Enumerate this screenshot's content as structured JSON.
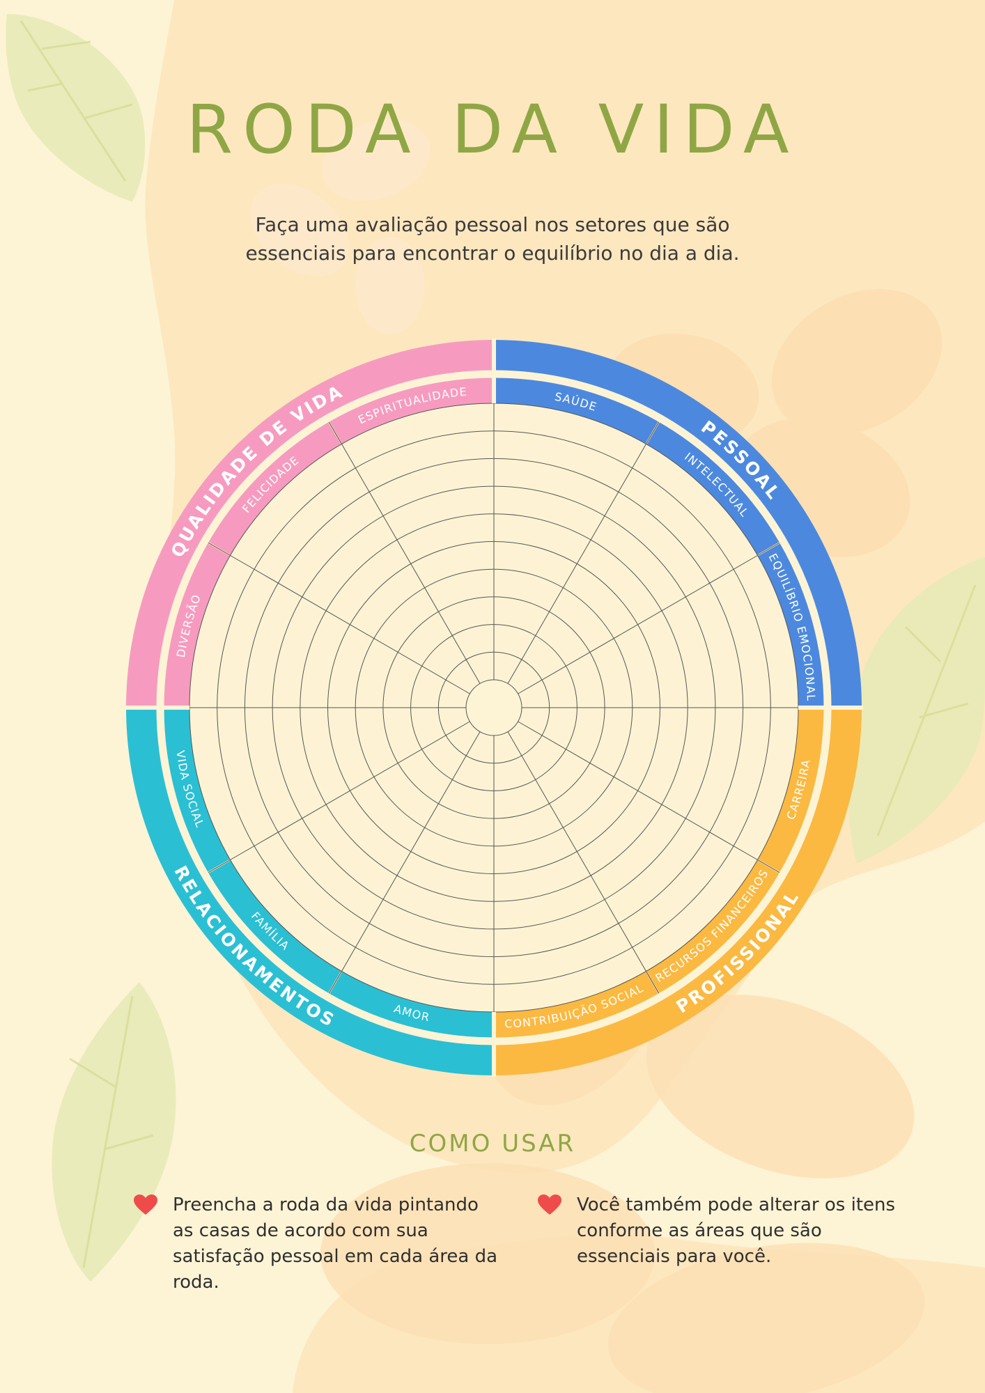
{
  "title": "RODA DA VIDA",
  "subtitle_line1": "Faça uma avaliação pessoal nos setores que são",
  "subtitle_line2": "essenciais para encontrar o equilíbrio no dia a dia.",
  "wheel": {
    "rings": 10,
    "categories": [
      {
        "label": "PESSOAL",
        "color": "#4c89de",
        "items": [
          "SAÚDE",
          "INTELECTUAL",
          "EQUILÍBRIO EMOCIONAL"
        ]
      },
      {
        "label": "PROFISSIONAL",
        "color": "#fbb941",
        "items": [
          "CARREIRA",
          "RECURSOS FINANCEIROS",
          "CONTRIBUIÇÃO SOCIAL"
        ]
      },
      {
        "label": "RELACIONAMENTOS",
        "color": "#2bbfd3",
        "items": [
          "AMOR",
          "FAMÍLIA",
          "VIDA SOCIAL"
        ]
      },
      {
        "label": "QUALIDADE DE VIDA",
        "color": "#f69bbf",
        "items": [
          "DIVERSÃO",
          "FELICIDADE",
          "ESPIRITUALIDADE"
        ]
      }
    ]
  },
  "howto": {
    "title": "COMO USAR",
    "tip1": "Preencha a roda da vida pintando as casas de acordo com sua satisfação pessoal em cada área da roda.",
    "tip2": "Você também pode alterar os itens conforme as áreas que são essenciais para você.",
    "heart_icon": "heart-icon",
    "heart_color": "#ef4b4b"
  },
  "colors": {
    "background": "#fdf4d6",
    "accent": "#8fa645",
    "line": "#555555"
  }
}
